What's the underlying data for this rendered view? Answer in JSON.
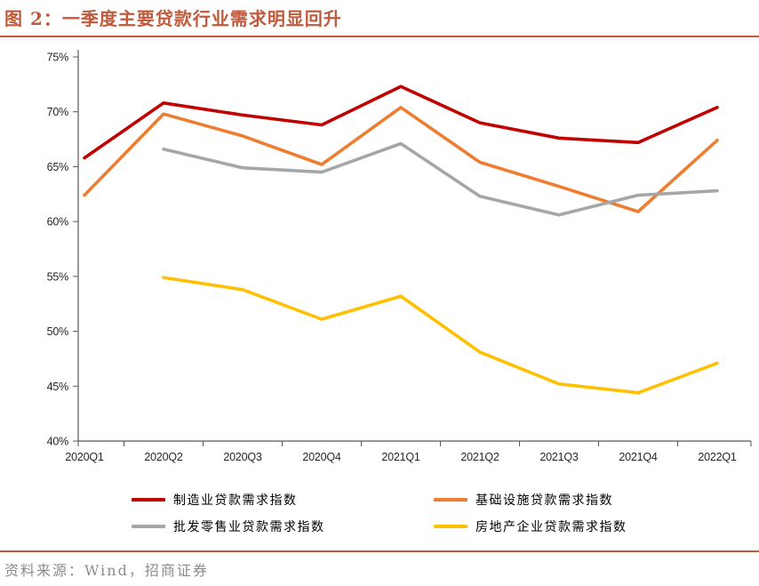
{
  "header": {
    "title": "图 2：一季度主要贷款行业需求明显回升"
  },
  "footer": {
    "source": "资料来源：Wind，招商证券"
  },
  "colors": {
    "accent_rule": "#c05a3c",
    "title_text": "#c05a3c",
    "axis_line": "#595959",
    "tick_text": "#262626",
    "source_text": "#8c8c8c"
  },
  "chart_data": {
    "type": "line",
    "title": "图 2：一季度主要贷款行业需求明显回升",
    "categories": [
      "2020Q1",
      "2020Q2",
      "2020Q3",
      "2020Q4",
      "2021Q1",
      "2021Q2",
      "2021Q3",
      "2021Q4",
      "2022Q1"
    ],
    "series": [
      {
        "name": "制造业贷款需求指数",
        "color": "#c00000",
        "values": [
          65.8,
          70.8,
          69.7,
          68.8,
          72.3,
          69.0,
          67.6,
          67.2,
          70.4
        ]
      },
      {
        "name": "基础设施贷款需求指数",
        "color": "#ed7d31",
        "values": [
          62.4,
          69.8,
          67.8,
          65.2,
          70.4,
          65.4,
          63.2,
          60.9,
          67.4
        ]
      },
      {
        "name": "批发零售业贷款需求指数",
        "color": "#a6a6a6",
        "values": [
          null,
          66.6,
          64.9,
          64.5,
          67.1,
          62.3,
          60.6,
          62.4,
          62.8
        ]
      },
      {
        "name": "房地产企业贷款需求指数",
        "color": "#ffc000",
        "values": [
          null,
          54.9,
          53.8,
          51.1,
          53.2,
          48.1,
          45.2,
          44.4,
          47.1
        ]
      }
    ],
    "xlabel": "",
    "ylabel": "",
    "ylim": [
      40,
      75
    ],
    "ytick_step": 5,
    "ytick_suffix": "%",
    "grid": false,
    "legend_position": "bottom"
  }
}
